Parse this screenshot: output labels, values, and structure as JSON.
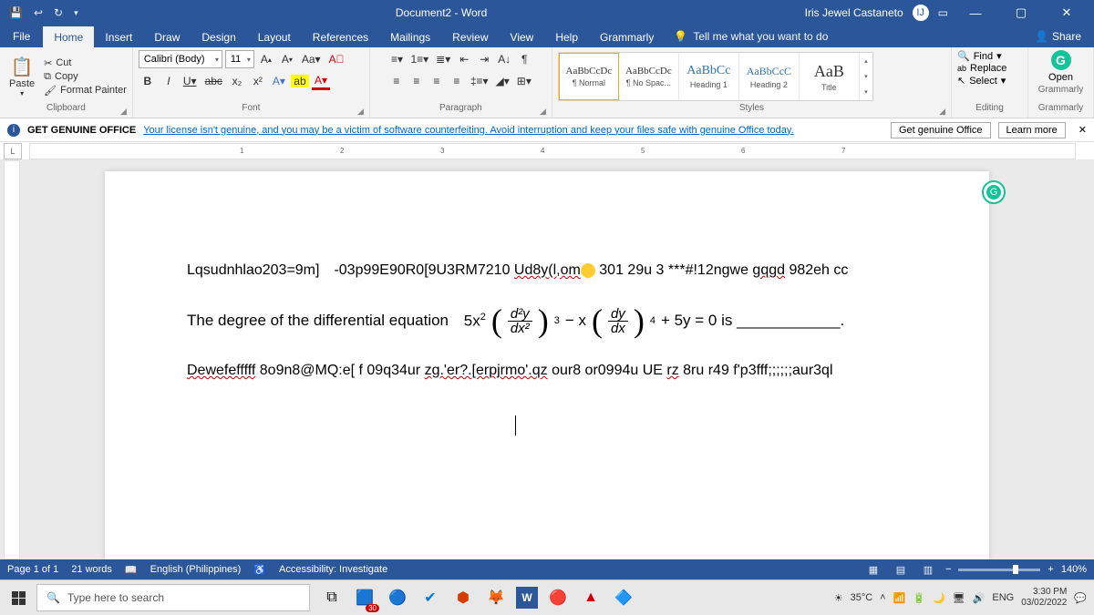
{
  "titlebar": {
    "doc_title": "Document2 - Word",
    "username": "Iris Jewel Castaneto",
    "avatar_initial": "IJ"
  },
  "tabs": {
    "file": "File",
    "items": [
      "Home",
      "Insert",
      "Draw",
      "Design",
      "Layout",
      "References",
      "Mailings",
      "Review",
      "View",
      "Help",
      "Grammarly"
    ],
    "tell_me": "Tell me what you want to do",
    "share": "Share"
  },
  "ribbon": {
    "clipboard": {
      "paste": "Paste",
      "cut": "Cut",
      "copy": "Copy",
      "painter": "Format Painter",
      "label": "Clipboard"
    },
    "font": {
      "name": "Calibri (Body)",
      "size": "11",
      "label": "Font"
    },
    "paragraph": {
      "label": "Paragraph"
    },
    "styles": {
      "items": [
        {
          "preview": "AaBbCcDc",
          "size": "11px",
          "color": "#333",
          "name": "¶ Normal"
        },
        {
          "preview": "AaBbCcDc",
          "size": "11px",
          "color": "#333",
          "name": "¶ No Spac..."
        },
        {
          "preview": "AaBbCc",
          "size": "14px",
          "color": "#2e74b5",
          "name": "Heading 1"
        },
        {
          "preview": "AaBbCcC",
          "size": "12px",
          "color": "#2e74b5",
          "name": "Heading 2"
        },
        {
          "preview": "AaB",
          "size": "18px",
          "color": "#333",
          "name": "Title"
        }
      ],
      "label": "Styles"
    },
    "editing": {
      "find": "Find",
      "replace": "Replace",
      "select": "Select",
      "label": "Editing"
    },
    "grammarly": {
      "open": "Open",
      "sub": "Grammarly",
      "label": "Grammarly"
    }
  },
  "warning": {
    "caption": "GET GENUINE OFFICE",
    "text": "Your license isn't genuine, and you may be a victim of software counterfeiting. Avoid interruption and keep your files safe with genuine Office today.",
    "btn1": "Get genuine Office",
    "btn2": "Learn more"
  },
  "doc": {
    "line1_a": "Lqsudnhlao203=9m]",
    "line1_b": "-03p99E90R0[9U3RM7210 ",
    "line1_c": "Ud8y(l,om",
    "line1_d": " 301 29u 3 ***#!12ngwe ",
    "line1_e": "gqgd",
    "line1_f": " 982eh cc",
    "eq_text": "The degree of the differential equation",
    "eq_coeff": "5x",
    "eq_frac1_n": "d²y",
    "eq_frac1_d": "dx²",
    "eq_pow1": "3",
    "eq_minus": "− x",
    "eq_frac2_n": "dy",
    "eq_frac2_d": "dx",
    "eq_pow2": "4",
    "eq_tail": "+ 5y = 0 is ____________.",
    "line3_a": "Dewefefffff",
    "line3_b": " 8o9n8@MQ:e[ f 09q34ur ",
    "line3_c": "zg.'er?.[erpjrmo'.qz",
    "line3_d": " our8 or0994u  UE  ",
    "line3_e": "rz",
    "line3_f": " 8ru r49 f'p3fff;;;;;;aur3ql"
  },
  "status": {
    "page": "Page 1 of 1",
    "words": "21 words",
    "lang": "English (Philippines)",
    "acc": "Accessibility: Investigate",
    "zoom": "140%"
  },
  "taskbar": {
    "search": "Type here to search",
    "badge": "30",
    "weather": "35°C",
    "lang": "ENG",
    "time": "3:30 PM",
    "date": "03/02/2022"
  }
}
